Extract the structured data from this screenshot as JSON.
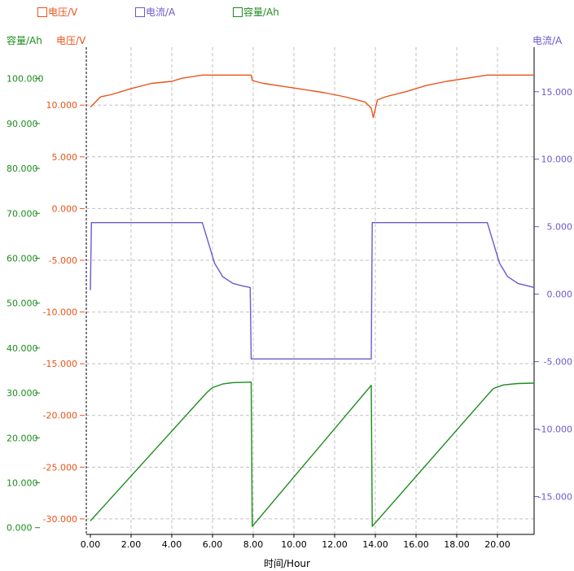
{
  "legend": [
    {
      "label": "电压/V",
      "color": "#e8541a"
    },
    {
      "label": "电流/A",
      "color": "#6a5acd"
    },
    {
      "label": "容量/Ah",
      "color": "#1e8c1e"
    }
  ],
  "axis_titles": {
    "capacity": "容量/Ah",
    "voltage": "电压/V",
    "current": "电流/A",
    "x": "时间/Hour"
  },
  "colors": {
    "voltage": "#e8541a",
    "current": "#6a5acd",
    "capacity": "#1e8c1e",
    "grid": "#c0c0c0",
    "axis": "#000000"
  },
  "chart_data": {
    "type": "line",
    "xlabel": "时间/Hour",
    "xlim": [
      -0.2,
      21.8
    ],
    "x_ticks": [
      "0.00",
      "2.00",
      "4.00",
      "6.00",
      "8.00",
      "10.00",
      "12.00",
      "14.00",
      "16.00",
      "18.00",
      "20.00"
    ],
    "grid": true,
    "axes": {
      "capacity": {
        "label": "容量/Ah",
        "range": [
          -1.5,
          107
        ],
        "ticks": [
          "0.000",
          "10.000",
          "20.000",
          "30.000",
          "40.000",
          "50.000",
          "60.000",
          "70.000",
          "80.000",
          "90.000",
          "100.000"
        ]
      },
      "voltage": {
        "label": "电压/V",
        "range": [
          -31.5,
          15.6
        ],
        "ticks": [
          "-30.000",
          "-25.000",
          "-20.000",
          "-15.000",
          "-10.000",
          "-5.000",
          "0.000",
          "5.000",
          "10.000"
        ]
      },
      "current": {
        "label": "电流/A",
        "range": [
          -17.8,
          18.3
        ],
        "ticks": [
          "-15.000",
          "-10.000",
          "-5.000",
          "0.000",
          "5.000",
          "10.000",
          "15.000"
        ]
      }
    },
    "series": [
      {
        "name": "电压/V",
        "axis": "voltage",
        "x": [
          0,
          0.3,
          0.5,
          1.0,
          2.0,
          3.0,
          4.0,
          4.5,
          5.5,
          7.9,
          7.95,
          8.1,
          8.5,
          9.5,
          10.5,
          11.5,
          12.5,
          13.5,
          13.8,
          13.9,
          14.1,
          14.5,
          15.5,
          16.5,
          17.5,
          18.5,
          19.5,
          21.8
        ],
        "y": [
          9.8,
          10.4,
          10.8,
          11.0,
          11.6,
          12.1,
          12.3,
          12.6,
          12.9,
          12.9,
          12.4,
          12.3,
          12.1,
          11.8,
          11.5,
          11.2,
          10.8,
          10.3,
          9.7,
          8.8,
          10.5,
          10.8,
          11.3,
          11.9,
          12.3,
          12.6,
          12.9,
          12.9
        ]
      },
      {
        "name": "电流/A",
        "axis": "current",
        "x": [
          0,
          0.05,
          5.5,
          5.8,
          6.1,
          6.5,
          7.0,
          7.5,
          7.85,
          7.9,
          13.8,
          13.85,
          19.5,
          19.8,
          20.1,
          20.5,
          21.0,
          21.8
        ],
        "y": [
          0.3,
          5.3,
          5.3,
          3.8,
          2.3,
          1.3,
          0.8,
          0.6,
          0.5,
          -4.8,
          -4.8,
          5.3,
          5.3,
          3.8,
          2.3,
          1.3,
          0.8,
          0.5
        ]
      },
      {
        "name": "容量/Ah",
        "axis": "capacity",
        "x": [
          0,
          5.7,
          6.0,
          6.5,
          7.0,
          7.9,
          7.95,
          13.8,
          13.85,
          19.5,
          19.8,
          20.3,
          21.0,
          21.8
        ],
        "y": [
          1.5,
          30.0,
          31.2,
          32.0,
          32.3,
          32.4,
          0.3,
          31.7,
          0.3,
          29.5,
          31.0,
          31.8,
          32.1,
          32.2
        ]
      }
    ]
  }
}
